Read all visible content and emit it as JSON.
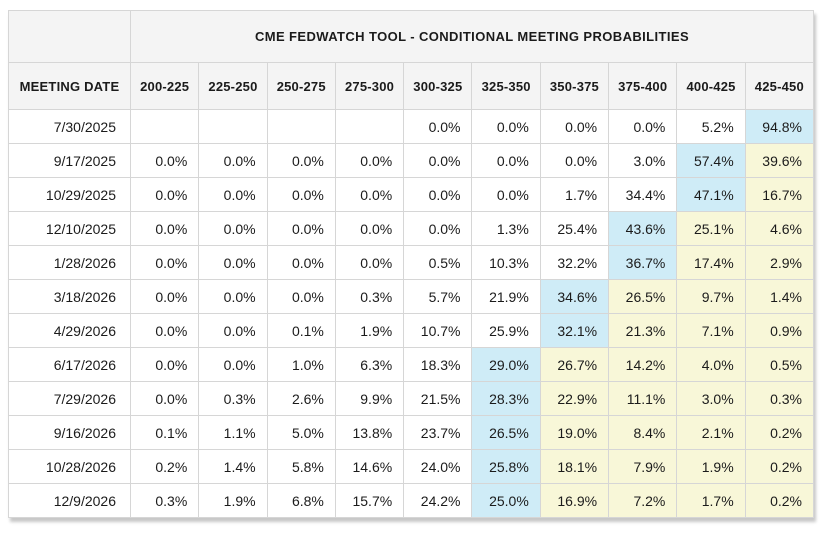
{
  "chart_data": {
    "type": "table",
    "title": "CME FEDWATCH TOOL - CONDITIONAL MEETING PROBABILITIES",
    "row_header_label": "MEETING DATE",
    "columns": [
      "200-225",
      "225-250",
      "250-275",
      "275-300",
      "300-325",
      "325-350",
      "350-375",
      "375-400",
      "400-425",
      "425-450"
    ],
    "rows": [
      {
        "date": "7/30/2025",
        "values": [
          "",
          "",
          "",
          "",
          "0.0%",
          "0.0%",
          "0.0%",
          "0.0%",
          "5.2%",
          "94.8%"
        ],
        "highlights": [
          "",
          "",
          "",
          "",
          "",
          "",
          "",
          "",
          "",
          "blue"
        ]
      },
      {
        "date": "9/17/2025",
        "values": [
          "0.0%",
          "0.0%",
          "0.0%",
          "0.0%",
          "0.0%",
          "0.0%",
          "0.0%",
          "3.0%",
          "57.4%",
          "39.6%"
        ],
        "highlights": [
          "",
          "",
          "",
          "",
          "",
          "",
          "",
          "",
          "blue",
          "yellow"
        ]
      },
      {
        "date": "10/29/2025",
        "values": [
          "0.0%",
          "0.0%",
          "0.0%",
          "0.0%",
          "0.0%",
          "0.0%",
          "1.7%",
          "34.4%",
          "47.1%",
          "16.7%"
        ],
        "highlights": [
          "",
          "",
          "",
          "",
          "",
          "",
          "",
          "",
          "blue",
          "yellow"
        ]
      },
      {
        "date": "12/10/2025",
        "values": [
          "0.0%",
          "0.0%",
          "0.0%",
          "0.0%",
          "0.0%",
          "1.3%",
          "25.4%",
          "43.6%",
          "25.1%",
          "4.6%"
        ],
        "highlights": [
          "",
          "",
          "",
          "",
          "",
          "",
          "",
          "blue",
          "yellow",
          "yellow"
        ]
      },
      {
        "date": "1/28/2026",
        "values": [
          "0.0%",
          "0.0%",
          "0.0%",
          "0.0%",
          "0.5%",
          "10.3%",
          "32.2%",
          "36.7%",
          "17.4%",
          "2.9%"
        ],
        "highlights": [
          "",
          "",
          "",
          "",
          "",
          "",
          "",
          "blue",
          "yellow",
          "yellow"
        ]
      },
      {
        "date": "3/18/2026",
        "values": [
          "0.0%",
          "0.0%",
          "0.0%",
          "0.3%",
          "5.7%",
          "21.9%",
          "34.6%",
          "26.5%",
          "9.7%",
          "1.4%"
        ],
        "highlights": [
          "",
          "",
          "",
          "",
          "",
          "",
          "blue",
          "yellow",
          "yellow",
          "yellow"
        ]
      },
      {
        "date": "4/29/2026",
        "values": [
          "0.0%",
          "0.0%",
          "0.1%",
          "1.9%",
          "10.7%",
          "25.9%",
          "32.1%",
          "21.3%",
          "7.1%",
          "0.9%"
        ],
        "highlights": [
          "",
          "",
          "",
          "",
          "",
          "",
          "blue",
          "yellow",
          "yellow",
          "yellow"
        ]
      },
      {
        "date": "6/17/2026",
        "values": [
          "0.0%",
          "0.0%",
          "1.0%",
          "6.3%",
          "18.3%",
          "29.0%",
          "26.7%",
          "14.2%",
          "4.0%",
          "0.5%"
        ],
        "highlights": [
          "",
          "",
          "",
          "",
          "",
          "blue",
          "yellow",
          "yellow",
          "yellow",
          "yellow"
        ]
      },
      {
        "date": "7/29/2026",
        "values": [
          "0.0%",
          "0.3%",
          "2.6%",
          "9.9%",
          "21.5%",
          "28.3%",
          "22.9%",
          "11.1%",
          "3.0%",
          "0.3%"
        ],
        "highlights": [
          "",
          "",
          "",
          "",
          "",
          "blue",
          "yellow",
          "yellow",
          "yellow",
          "yellow"
        ]
      },
      {
        "date": "9/16/2026",
        "values": [
          "0.1%",
          "1.1%",
          "5.0%",
          "13.8%",
          "23.7%",
          "26.5%",
          "19.0%",
          "8.4%",
          "2.1%",
          "0.2%"
        ],
        "highlights": [
          "",
          "",
          "",
          "",
          "",
          "blue",
          "yellow",
          "yellow",
          "yellow",
          "yellow"
        ]
      },
      {
        "date": "10/28/2026",
        "values": [
          "0.2%",
          "1.4%",
          "5.8%",
          "14.6%",
          "24.0%",
          "25.8%",
          "18.1%",
          "7.9%",
          "1.9%",
          "0.2%"
        ],
        "highlights": [
          "",
          "",
          "",
          "",
          "",
          "blue",
          "yellow",
          "yellow",
          "yellow",
          "yellow"
        ]
      },
      {
        "date": "12/9/2026",
        "values": [
          "0.3%",
          "1.9%",
          "6.8%",
          "15.7%",
          "24.2%",
          "25.0%",
          "16.9%",
          "7.2%",
          "1.7%",
          "0.2%"
        ],
        "highlights": [
          "",
          "",
          "",
          "",
          "",
          "blue",
          "yellow",
          "yellow",
          "yellow",
          "yellow"
        ]
      }
    ]
  },
  "colors": {
    "header_bg": "#f4f4f4",
    "grid": "#d6d6d6",
    "text": "#1b1b1b",
    "blue_highlight": "#cfecf7",
    "yellow_highlight": "#f8f7d8"
  }
}
